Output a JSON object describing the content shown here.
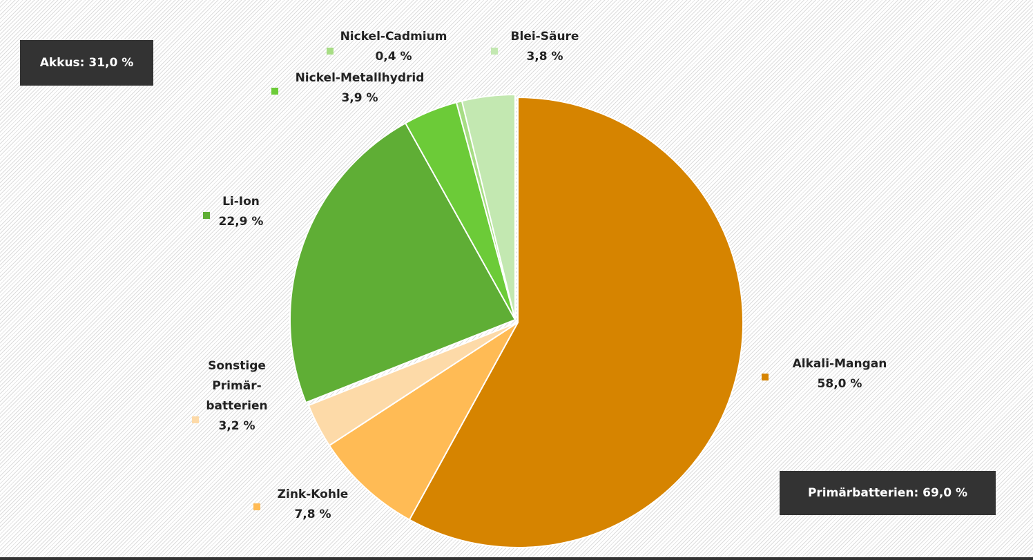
{
  "chart_data": {
    "type": "pie",
    "start_angle_deg": 0,
    "direction": "clockwise",
    "slices": [
      {
        "label": "Alkali-Mangan",
        "value_text": "58,0 %",
        "value": 58.0,
        "color": "#d68400",
        "group": "primary"
      },
      {
        "label": "Zink-Kohle",
        "value_text": "7,8 %",
        "value": 7.8,
        "color": "#ffbb55",
        "group": "primary"
      },
      {
        "label_lines": [
          "Sonstige",
          "Primär-",
          "batterien"
        ],
        "value_text": "3,2 %",
        "value": 3.2,
        "color": "#fddaa8",
        "group": "primary"
      },
      {
        "label": "Li-Ion",
        "value_text": "22,9 %",
        "value": 22.9,
        "color": "#5fae35",
        "group": "akkus"
      },
      {
        "label": "Nickel-Metallhydrid",
        "value_text": "3,9 %",
        "value": 3.9,
        "color": "#6ccb38",
        "group": "akkus"
      },
      {
        "label": "Nickel-Cadmium",
        "value_text": "0,4 %",
        "value": 0.4,
        "color": "#a7dd84",
        "group": "akkus"
      },
      {
        "label": "Blei-Säure",
        "value_text": "3,8 %",
        "value": 3.8,
        "color": "#c3e8b1",
        "group": "akkus"
      }
    ],
    "groups": {
      "akkus": {
        "label": "Akkus: 31,0 %",
        "value": 31.0
      },
      "primary": {
        "label": "Primärbatterien: 69,0 %",
        "value": 69.0
      }
    }
  }
}
